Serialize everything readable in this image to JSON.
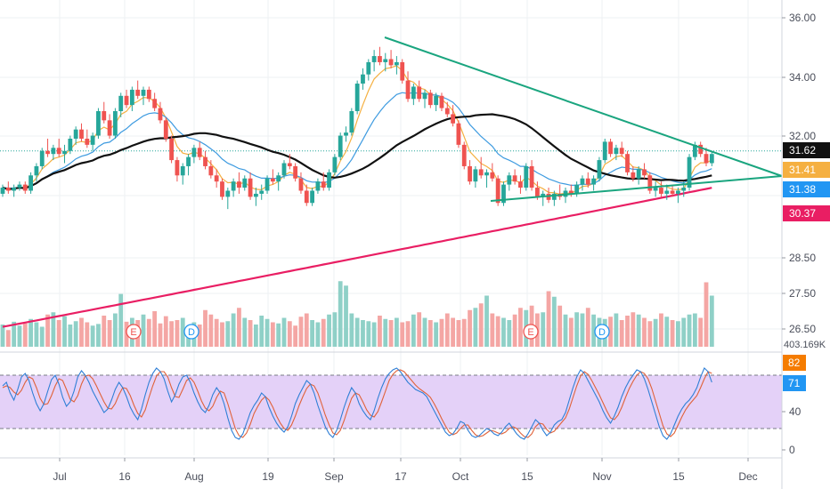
{
  "chart_data": {
    "type": "candlestick",
    "colors": {
      "up": "#26a69a",
      "down": "#ef5350",
      "up_volume": "#8fd0c7",
      "down_volume": "#f4a6a4",
      "ma_fast": "#f5b041",
      "ma_mid": "#3e9be0",
      "ma_slow": "#111111",
      "ma_long": "#e91e63",
      "triangle": "#1aa57f",
      "stoch_k": "#2f7fd6",
      "stoch_d": "#e0623a",
      "stoch_band": "#e4d1f8"
    },
    "price_axis": {
      "range": [
        25.6,
        36.7
      ],
      "ticks": [
        "36.00",
        "34.00",
        "32.00",
        "28.50",
        "27.50",
        "26.50"
      ],
      "tags": [
        {
          "label": "31.62",
          "value": 31.62,
          "color": "#111111"
        },
        {
          "label": "31.41",
          "value": 31.41,
          "color": "#f5b041"
        },
        {
          "label": "31.38",
          "value": 31.38,
          "color": "#2196f3"
        },
        {
          "label": "30.37",
          "value": 30.37,
          "color": "#e91e63"
        }
      ],
      "last_price_line": 32.0
    },
    "volume": {
      "label": "403.169K",
      "scale_max": 120
    },
    "oscillator": {
      "range": [
        -10,
        100
      ],
      "ticks": [
        "40",
        "0"
      ],
      "band": [
        20,
        80
      ],
      "tags": [
        {
          "label": "82",
          "value": 82,
          "color": "#f57c00"
        },
        {
          "label": "71",
          "value": 71,
          "color": "#2196f3"
        }
      ],
      "k": [
        68,
        72,
        60,
        52,
        64,
        78,
        82,
        74,
        60,
        48,
        40,
        48,
        62,
        75,
        80,
        70,
        55,
        45,
        50,
        62,
        78,
        85,
        80,
        72,
        62,
        54,
        46,
        38,
        42,
        52,
        64,
        72,
        66,
        56,
        44,
        36,
        30,
        42,
        58,
        72,
        82,
        88,
        84,
        76,
        62,
        50,
        58,
        70,
        78,
        80,
        72,
        60,
        50,
        42,
        38,
        46,
        58,
        66,
        60,
        48,
        32,
        18,
        10,
        8,
        14,
        26,
        38,
        46,
        52,
        60,
        56,
        44,
        34,
        26,
        20,
        16,
        22,
        34,
        48,
        58,
        66,
        74,
        70,
        60,
        46,
        34,
        22,
        14,
        10,
        18,
        30,
        44,
        56,
        66,
        60,
        48,
        40,
        34,
        30,
        40,
        54,
        66,
        76,
        82,
        86,
        88,
        84,
        78,
        72,
        68,
        64,
        62,
        60,
        56,
        48,
        40,
        32,
        24,
        16,
        12,
        14,
        20,
        28,
        26,
        18,
        12,
        10,
        12,
        16,
        20,
        18,
        14,
        12,
        16,
        22,
        26,
        20,
        14,
        10,
        8,
        14,
        22,
        30,
        26,
        18,
        12,
        16,
        24,
        28,
        30,
        38,
        52,
        66,
        78,
        86,
        82,
        74,
        66,
        58,
        50,
        40,
        32,
        26,
        34,
        44,
        56,
        66,
        74,
        80,
        86,
        84,
        76,
        64,
        50,
        36,
        22,
        12,
        8,
        14,
        24,
        34,
        42,
        48,
        52,
        58,
        66,
        78,
        88,
        84,
        72
      ],
      "d": [
        66,
        68,
        66,
        61,
        58,
        63,
        72,
        78,
        76,
        66,
        54,
        47,
        48,
        57,
        68,
        76,
        74,
        64,
        53,
        50,
        57,
        70,
        79,
        80,
        76,
        68,
        59,
        50,
        43,
        42,
        48,
        58,
        66,
        65,
        57,
        46,
        37,
        33,
        41,
        55,
        68,
        79,
        84,
        84,
        78,
        66,
        56,
        55,
        64,
        74,
        77,
        72,
        62,
        51,
        43,
        40,
        45,
        55,
        62,
        60,
        48,
        34,
        20,
        12,
        10,
        15,
        25,
        37,
        45,
        52,
        56,
        52,
        44,
        34,
        26,
        20,
        18,
        24,
        34,
        46,
        56,
        65,
        70,
        68,
        60,
        48,
        35,
        24,
        15,
        13,
        18,
        29,
        42,
        54,
        60,
        58,
        50,
        41,
        35,
        33,
        39,
        50,
        62,
        74,
        81,
        85,
        86,
        84,
        79,
        74,
        69,
        65,
        62,
        59,
        55,
        48,
        40,
        31,
        23,
        16,
        13,
        15,
        20,
        24,
        24,
        18,
        13,
        11,
        12,
        15,
        18,
        17,
        15,
        14,
        16,
        20,
        22,
        20,
        15,
        11,
        10,
        14,
        22,
        26,
        25,
        19,
        15,
        17,
        22,
        27,
        32,
        42,
        55,
        68,
        79,
        84,
        81,
        74,
        66,
        58,
        49,
        40,
        32,
        30,
        35,
        44,
        55,
        65,
        73,
        80,
        84,
        82,
        76,
        65,
        51,
        37,
        23,
        14,
        11,
        15,
        24,
        33,
        41,
        47,
        52,
        57,
        66,
        76,
        84,
        82
      ]
    },
    "x_axis": {
      "ticks": [
        "Jul",
        "16",
        "Aug",
        "19",
        "Sep",
        "17",
        "Oct",
        "15",
        "Nov",
        "15",
        "Dec"
      ]
    },
    "events": [
      {
        "label": "E",
        "color": "#ef5350"
      },
      {
        "label": "D",
        "color": "#2196f3"
      },
      {
        "label": "E",
        "color": "#ef5350"
      },
      {
        "label": "D",
        "color": "#2196f3"
      }
    ],
    "candles": [
      [
        30.6,
        30.9,
        30.5,
        30.8
      ],
      [
        30.8,
        31.0,
        30.6,
        30.7
      ],
      [
        30.7,
        30.9,
        30.5,
        30.8
      ],
      [
        30.8,
        31.0,
        30.7,
        30.9
      ],
      [
        30.9,
        31.0,
        30.6,
        30.7
      ],
      [
        30.7,
        31.3,
        30.6,
        31.2
      ],
      [
        31.2,
        31.6,
        31.0,
        31.5
      ],
      [
        31.5,
        32.1,
        31.4,
        32.0
      ],
      [
        32.0,
        32.4,
        31.8,
        31.9
      ],
      [
        31.9,
        32.2,
        31.7,
        32.1
      ],
      [
        32.1,
        32.4,
        31.8,
        31.9
      ],
      [
        31.9,
        32.2,
        31.6,
        32.0
      ],
      [
        32.0,
        32.5,
        31.9,
        32.4
      ],
      [
        32.4,
        32.8,
        32.2,
        32.7
      ],
      [
        32.7,
        32.9,
        32.3,
        32.4
      ],
      [
        32.4,
        32.7,
        32.1,
        32.2
      ],
      [
        32.2,
        32.6,
        32.0,
        32.5
      ],
      [
        32.5,
        33.4,
        32.4,
        33.3
      ],
      [
        33.3,
        33.6,
        32.9,
        33.0
      ],
      [
        33.0,
        33.2,
        32.4,
        32.5
      ],
      [
        32.5,
        33.4,
        32.4,
        33.3
      ],
      [
        33.3,
        33.9,
        33.1,
        33.8
      ],
      [
        33.8,
        34.0,
        33.4,
        33.5
      ],
      [
        33.5,
        34.1,
        33.3,
        34.0
      ],
      [
        34.0,
        34.3,
        33.7,
        33.8
      ],
      [
        33.8,
        34.1,
        33.5,
        34.0
      ],
      [
        34.0,
        34.1,
        33.6,
        33.7
      ],
      [
        33.7,
        33.9,
        33.3,
        33.4
      ],
      [
        33.4,
        33.6,
        32.9,
        33.0
      ],
      [
        33.0,
        33.1,
        32.3,
        32.4
      ],
      [
        32.4,
        32.5,
        31.6,
        31.7
      ],
      [
        31.7,
        31.8,
        31.0,
        31.2
      ],
      [
        31.2,
        31.6,
        30.9,
        31.5
      ],
      [
        31.5,
        31.9,
        31.2,
        31.8
      ],
      [
        31.8,
        32.2,
        31.6,
        32.1
      ],
      [
        32.1,
        32.3,
        31.7,
        31.8
      ],
      [
        31.8,
        32.0,
        31.4,
        31.5
      ],
      [
        31.5,
        31.7,
        31.1,
        31.2
      ],
      [
        31.2,
        31.4,
        30.8,
        31.0
      ],
      [
        31.0,
        31.1,
        30.4,
        30.5
      ],
      [
        30.5,
        30.8,
        30.1,
        30.7
      ],
      [
        30.7,
        31.1,
        30.5,
        31.0
      ],
      [
        31.0,
        31.3,
        30.6,
        30.8
      ],
      [
        30.8,
        31.2,
        30.7,
        31.1
      ],
      [
        31.1,
        31.3,
        30.4,
        30.5
      ],
      [
        30.5,
        30.8,
        30.2,
        30.6
      ],
      [
        30.6,
        30.9,
        30.4,
        30.7
      ],
      [
        30.7,
        31.2,
        30.6,
        31.1
      ],
      [
        31.1,
        31.4,
        30.9,
        31.0
      ],
      [
        31.0,
        31.3,
        30.7,
        31.2
      ],
      [
        31.2,
        31.7,
        31.1,
        31.6
      ],
      [
        31.6,
        31.9,
        31.4,
        31.5
      ],
      [
        31.5,
        31.6,
        31.0,
        31.1
      ],
      [
        31.1,
        31.3,
        30.6,
        30.7
      ],
      [
        30.7,
        30.9,
        30.2,
        30.3
      ],
      [
        30.3,
        30.8,
        30.2,
        30.7
      ],
      [
        30.7,
        31.1,
        30.6,
        31.0
      ],
      [
        31.0,
        31.3,
        30.7,
        30.8
      ],
      [
        30.8,
        31.4,
        30.7,
        31.3
      ],
      [
        31.3,
        31.9,
        31.2,
        31.8
      ],
      [
        31.8,
        32.6,
        31.7,
        32.5
      ],
      [
        32.5,
        32.8,
        32.3,
        32.6
      ],
      [
        32.6,
        33.4,
        32.5,
        33.3
      ],
      [
        33.3,
        34.3,
        33.2,
        34.2
      ],
      [
        34.2,
        34.7,
        34.0,
        34.5
      ],
      [
        34.5,
        35.0,
        34.3,
        34.9
      ],
      [
        34.9,
        35.3,
        34.6,
        35.1
      ],
      [
        35.1,
        35.4,
        34.8,
        34.9
      ],
      [
        34.9,
        35.2,
        34.6,
        35.0
      ],
      [
        35.0,
        35.3,
        34.7,
        34.8
      ],
      [
        34.8,
        35.1,
        34.5,
        34.9
      ],
      [
        34.9,
        35.0,
        34.2,
        34.3
      ],
      [
        34.3,
        34.6,
        33.6,
        33.7
      ],
      [
        33.7,
        34.2,
        33.5,
        34.1
      ],
      [
        34.1,
        34.3,
        33.6,
        33.7
      ],
      [
        33.7,
        34.0,
        33.4,
        33.9
      ],
      [
        33.9,
        34.0,
        33.4,
        33.5
      ],
      [
        33.5,
        33.9,
        33.3,
        33.8
      ],
      [
        33.8,
        33.9,
        33.3,
        33.4
      ],
      [
        33.4,
        33.6,
        33.1,
        33.2
      ],
      [
        33.2,
        33.5,
        32.8,
        32.9
      ],
      [
        32.9,
        33.0,
        32.1,
        32.2
      ],
      [
        32.2,
        32.3,
        31.4,
        31.5
      ],
      [
        31.5,
        31.7,
        30.9,
        31.0
      ],
      [
        31.0,
        31.5,
        30.8,
        31.4
      ],
      [
        31.4,
        31.8,
        31.1,
        31.2
      ],
      [
        31.2,
        31.4,
        30.8,
        31.3
      ],
      [
        31.3,
        31.6,
        31.0,
        31.1
      ],
      [
        31.1,
        31.2,
        30.2,
        30.3
      ],
      [
        30.3,
        31.0,
        30.2,
        30.9
      ],
      [
        30.9,
        31.3,
        30.7,
        31.2
      ],
      [
        31.2,
        31.4,
        30.9,
        31.0
      ],
      [
        31.0,
        31.2,
        30.6,
        30.8
      ],
      [
        30.8,
        31.6,
        30.7,
        31.5
      ],
      [
        31.5,
        31.7,
        30.7,
        30.8
      ],
      [
        30.8,
        31.0,
        30.4,
        30.5
      ],
      [
        30.5,
        30.7,
        30.2,
        30.6
      ],
      [
        30.6,
        30.8,
        30.3,
        30.4
      ],
      [
        30.4,
        30.7,
        30.2,
        30.6
      ],
      [
        30.6,
        30.9,
        30.4,
        30.5
      ],
      [
        30.5,
        30.8,
        30.3,
        30.7
      ],
      [
        30.7,
        30.9,
        30.5,
        30.6
      ],
      [
        30.6,
        31.0,
        30.5,
        30.9
      ],
      [
        30.9,
        31.2,
        30.7,
        31.1
      ],
      [
        31.1,
        31.3,
        30.8,
        30.9
      ],
      [
        30.9,
        31.2,
        30.7,
        31.1
      ],
      [
        31.1,
        31.8,
        31.0,
        31.7
      ],
      [
        31.7,
        32.4,
        31.6,
        32.3
      ],
      [
        32.3,
        32.4,
        31.8,
        31.9
      ],
      [
        31.9,
        32.2,
        31.7,
        32.1
      ],
      [
        32.1,
        32.3,
        31.8,
        31.9
      ],
      [
        31.9,
        32.0,
        31.2,
        31.3
      ],
      [
        31.3,
        31.5,
        31.0,
        31.1
      ],
      [
        31.1,
        31.5,
        30.9,
        31.4
      ],
      [
        31.4,
        31.6,
        31.1,
        31.2
      ],
      [
        31.2,
        31.3,
        30.6,
        30.7
      ],
      [
        30.7,
        31.0,
        30.5,
        30.8
      ],
      [
        30.8,
        31.0,
        30.5,
        30.6
      ],
      [
        30.6,
        30.9,
        30.4,
        30.7
      ],
      [
        30.7,
        30.9,
        30.5,
        30.6
      ],
      [
        30.6,
        30.8,
        30.3,
        30.7
      ],
      [
        30.7,
        31.0,
        30.5,
        30.8
      ],
      [
        30.8,
        31.9,
        30.7,
        31.8
      ],
      [
        31.8,
        32.3,
        31.7,
        32.2
      ],
      [
        32.2,
        32.3,
        31.8,
        31.9
      ],
      [
        31.9,
        32.1,
        31.5,
        31.6
      ],
      [
        31.6,
        32.0,
        31.5,
        31.9
      ]
    ],
    "volumes": [
      40,
      30,
      45,
      38,
      42,
      50,
      44,
      36,
      58,
      62,
      48,
      55,
      40,
      46,
      52,
      44,
      38,
      41,
      56,
      48,
      60,
      95,
      45,
      52,
      48,
      58,
      50,
      64,
      42,
      55,
      46,
      48,
      52,
      38,
      44,
      40,
      66,
      58,
      50,
      44,
      46,
      60,
      70,
      52,
      48,
      40,
      56,
      50,
      44,
      42,
      52,
      46,
      38,
      54,
      60,
      48,
      44,
      50,
      58,
      62,
      118,
      110,
      60,
      52,
      48,
      46,
      44,
      56,
      50,
      48,
      52,
      44,
      46,
      58,
      62,
      52,
      48,
      44,
      50,
      60,
      52,
      48,
      50,
      66,
      70,
      78,
      92,
      60,
      55,
      52,
      48,
      58,
      70,
      66,
      74,
      60,
      62,
      100,
      90,
      74,
      58,
      52,
      62,
      60,
      70,
      58,
      52,
      50,
      54,
      60,
      48,
      56,
      62,
      58,
      52,
      46,
      50,
      60,
      54,
      48,
      46,
      52,
      58,
      60,
      52,
      116,
      92,
      4,
      4
    ]
  }
}
